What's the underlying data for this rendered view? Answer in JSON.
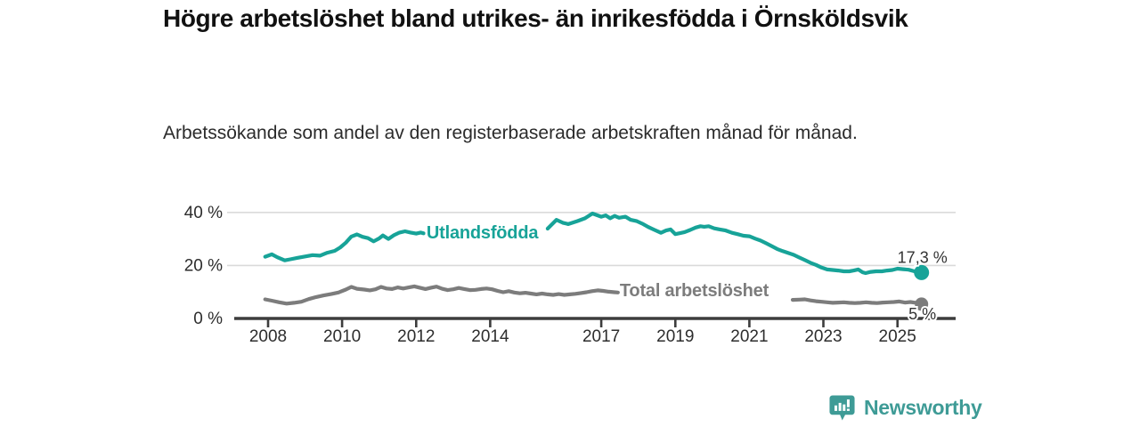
{
  "header": {
    "title": "Högre arbetslöshet bland utrikes- än inrikesfödda i Örnsköldsvik",
    "subtitle": "Arbetssökande som andel av den registerbaserade arbetskraften månad för månad."
  },
  "footer": {
    "brand": "Newsworthy",
    "brand_color": "#3E9B96",
    "logo_icon": "newsworthy-speech-bubble-bar-chart-icon"
  },
  "chart_data": {
    "type": "line",
    "title": "Högre arbetslöshet bland utrikes- än inrikesfödda i Örnsköldsvik",
    "subtitle": "Arbetssökande som andel av den registerbaserade arbetskraften månad för månad.",
    "grid": "horizontal",
    "xlim": [
      2006.9,
      2026.6
    ],
    "ylim": [
      0,
      42
    ],
    "x_axis": {
      "ticks": [
        {
          "value": 2008,
          "label": "2008"
        },
        {
          "value": 2010,
          "label": "2010"
        },
        {
          "value": 2012,
          "label": "2012"
        },
        {
          "value": 2014,
          "label": "2014"
        },
        {
          "value": 2017,
          "label": "2017"
        },
        {
          "value": 2019,
          "label": "2019"
        },
        {
          "value": 2021,
          "label": "2021"
        },
        {
          "value": 2023,
          "label": "2023"
        },
        {
          "value": 2025,
          "label": "2025"
        }
      ]
    },
    "y_axis": {
      "ticks": [
        {
          "value": 0,
          "label": "0 %"
        },
        {
          "value": 20,
          "label": "20 %"
        },
        {
          "value": 40,
          "label": "40 %"
        }
      ],
      "gridlines": [
        20,
        40
      ]
    },
    "colors": {
      "utlandsfodda": "#17A398",
      "total": "#7C7C7C",
      "axis": "#3D3D3D",
      "gridline": "#DADADA",
      "value_label": "#333333"
    },
    "series": [
      {
        "id": "utlandsfodda",
        "name": "Utlandsfödda",
        "color": "#17A398",
        "inline_label": {
          "text": "Utlandsfödda",
          "x": 2012.28,
          "y": 32.2
        },
        "end_label": {
          "text": "17,3 %",
          "position": "above"
        },
        "final_value": 17.3,
        "segments": [
          [
            [
              2007.92,
              23.3
            ],
            [
              2008.1,
              24.2
            ],
            [
              2008.25,
              23.1
            ],
            [
              2008.45,
              21.9
            ],
            [
              2008.6,
              22.3
            ],
            [
              2008.8,
              22.9
            ],
            [
              2009.0,
              23.4
            ],
            [
              2009.2,
              23.9
            ],
            [
              2009.4,
              23.7
            ],
            [
              2009.6,
              24.8
            ],
            [
              2009.8,
              25.5
            ],
            [
              2009.95,
              26.8
            ],
            [
              2010.1,
              28.6
            ],
            [
              2010.25,
              30.9
            ],
            [
              2010.4,
              31.7
            ],
            [
              2010.55,
              30.8
            ],
            [
              2010.7,
              30.3
            ],
            [
              2010.85,
              29.1
            ],
            [
              2011.0,
              30.2
            ],
            [
              2011.1,
              31.3
            ],
            [
              2011.25,
              30.0
            ],
            [
              2011.4,
              31.4
            ],
            [
              2011.55,
              32.4
            ],
            [
              2011.7,
              32.9
            ],
            [
              2011.85,
              32.4
            ],
            [
              2012.0,
              32.0
            ],
            [
              2012.12,
              32.4
            ],
            [
              2012.2,
              32.1
            ]
          ],
          [
            [
              2015.55,
              33.9
            ],
            [
              2015.79,
              37.2
            ],
            [
              2015.96,
              36.1
            ],
            [
              2016.11,
              35.6
            ],
            [
              2016.35,
              36.7
            ],
            [
              2016.56,
              37.8
            ],
            [
              2016.76,
              39.6
            ],
            [
              2017.0,
              38.4
            ],
            [
              2017.12,
              38.9
            ],
            [
              2017.24,
              37.8
            ],
            [
              2017.36,
              38.7
            ],
            [
              2017.48,
              38.0
            ],
            [
              2017.65,
              38.4
            ],
            [
              2017.79,
              37.2
            ],
            [
              2017.96,
              36.7
            ],
            [
              2018.13,
              35.6
            ],
            [
              2018.27,
              34.5
            ],
            [
              2018.44,
              33.4
            ],
            [
              2018.61,
              32.3
            ],
            [
              2018.75,
              33.2
            ],
            [
              2018.87,
              33.6
            ],
            [
              2019.0,
              31.8
            ],
            [
              2019.1,
              32.1
            ],
            [
              2019.25,
              32.6
            ],
            [
              2019.4,
              33.4
            ],
            [
              2019.55,
              34.3
            ],
            [
              2019.68,
              34.8
            ],
            [
              2019.78,
              34.6
            ],
            [
              2019.9,
              34.8
            ],
            [
              2020.05,
              34.0
            ],
            [
              2020.2,
              33.6
            ],
            [
              2020.36,
              33.2
            ],
            [
              2020.53,
              32.3
            ],
            [
              2020.68,
              31.8
            ],
            [
              2020.84,
              31.2
            ],
            [
              2021.0,
              31.0
            ],
            [
              2021.16,
              30.1
            ],
            [
              2021.3,
              29.4
            ],
            [
              2021.45,
              28.4
            ],
            [
              2021.6,
              27.3
            ],
            [
              2021.75,
              26.2
            ],
            [
              2021.9,
              25.4
            ],
            [
              2022.05,
              24.7
            ],
            [
              2022.2,
              24.0
            ],
            [
              2022.35,
              23.0
            ],
            [
              2022.5,
              22.0
            ],
            [
              2022.65,
              21.0
            ],
            [
              2022.8,
              20.2
            ],
            [
              2022.95,
              19.2
            ],
            [
              2023.1,
              18.5
            ],
            [
              2023.25,
              18.3
            ],
            [
              2023.4,
              18.1
            ],
            [
              2023.55,
              17.8
            ],
            [
              2023.7,
              17.8
            ],
            [
              2023.82,
              18.1
            ],
            [
              2023.94,
              18.5
            ],
            [
              2024.06,
              17.4
            ],
            [
              2024.14,
              17.1
            ],
            [
              2024.28,
              17.6
            ],
            [
              2024.42,
              17.8
            ],
            [
              2024.58,
              17.8
            ],
            [
              2024.72,
              18.1
            ],
            [
              2024.86,
              18.3
            ],
            [
              2025.0,
              18.8
            ],
            [
              2025.15,
              18.6
            ],
            [
              2025.3,
              18.4
            ],
            [
              2025.46,
              17.8
            ],
            [
              2025.65,
              17.3
            ]
          ]
        ]
      },
      {
        "id": "total-arbetsloshet",
        "name": "Total arbetslöshet",
        "color": "#7C7C7C",
        "inline_label": {
          "text": "Total arbetslöshet",
          "x": 2017.5,
          "y": 10.4
        },
        "end_label": {
          "text": "5 %",
          "position": "below"
        },
        "final_value": 5.4,
        "segments": [
          [
            [
              2007.92,
              7.2
            ],
            [
              2008.1,
              6.7
            ],
            [
              2008.3,
              6.1
            ],
            [
              2008.5,
              5.6
            ],
            [
              2008.7,
              5.9
            ],
            [
              2008.9,
              6.3
            ],
            [
              2009.1,
              7.3
            ],
            [
              2009.3,
              8.1
            ],
            [
              2009.5,
              8.7
            ],
            [
              2009.7,
              9.2
            ],
            [
              2009.9,
              9.8
            ],
            [
              2010.1,
              10.9
            ],
            [
              2010.25,
              11.9
            ],
            [
              2010.4,
              11.2
            ],
            [
              2010.6,
              10.9
            ],
            [
              2010.75,
              10.6
            ],
            [
              2010.9,
              11.0
            ],
            [
              2011.05,
              11.9
            ],
            [
              2011.2,
              11.3
            ],
            [
              2011.35,
              11.1
            ],
            [
              2011.5,
              11.7
            ],
            [
              2011.65,
              11.3
            ],
            [
              2011.8,
              11.7
            ],
            [
              2011.95,
              12.1
            ],
            [
              2012.1,
              11.6
            ],
            [
              2012.25,
              11.1
            ],
            [
              2012.4,
              11.6
            ],
            [
              2012.55,
              12.0
            ],
            [
              2012.7,
              11.2
            ],
            [
              2012.85,
              10.7
            ],
            [
              2013.0,
              11.0
            ],
            [
              2013.15,
              11.5
            ],
            [
              2013.3,
              11.1
            ],
            [
              2013.45,
              10.7
            ],
            [
              2013.6,
              10.8
            ],
            [
              2013.75,
              11.1
            ],
            [
              2013.9,
              11.3
            ],
            [
              2014.05,
              11.0
            ],
            [
              2014.2,
              10.4
            ],
            [
              2014.35,
              9.9
            ],
            [
              2014.5,
              10.3
            ],
            [
              2014.65,
              9.8
            ],
            [
              2014.8,
              9.5
            ],
            [
              2014.95,
              9.7
            ],
            [
              2015.1,
              9.4
            ],
            [
              2015.25,
              9.1
            ],
            [
              2015.4,
              9.4
            ],
            [
              2015.55,
              9.1
            ],
            [
              2015.7,
              8.9
            ],
            [
              2015.85,
              9.2
            ],
            [
              2016.0,
              8.9
            ],
            [
              2016.15,
              9.1
            ],
            [
              2016.3,
              9.3
            ],
            [
              2016.45,
              9.6
            ],
            [
              2016.6,
              9.9
            ],
            [
              2016.75,
              10.3
            ],
            [
              2016.9,
              10.6
            ],
            [
              2017.05,
              10.4
            ],
            [
              2017.2,
              10.1
            ],
            [
              2017.35,
              9.9
            ],
            [
              2017.45,
              9.8
            ]
          ],
          [
            [
              2022.17,
              7.0
            ],
            [
              2022.35,
              7.1
            ],
            [
              2022.5,
              7.2
            ],
            [
              2022.65,
              6.8
            ],
            [
              2022.8,
              6.5
            ],
            [
              2022.95,
              6.3
            ],
            [
              2023.1,
              6.1
            ],
            [
              2023.25,
              5.9
            ],
            [
              2023.4,
              6.0
            ],
            [
              2023.55,
              6.1
            ],
            [
              2023.7,
              5.9
            ],
            [
              2023.85,
              5.8
            ],
            [
              2024.0,
              5.9
            ],
            [
              2024.15,
              6.1
            ],
            [
              2024.3,
              5.9
            ],
            [
              2024.45,
              5.8
            ],
            [
              2024.6,
              6.0
            ],
            [
              2024.75,
              6.1
            ],
            [
              2024.9,
              6.2
            ],
            [
              2025.05,
              6.4
            ],
            [
              2025.2,
              6.0
            ],
            [
              2025.35,
              6.2
            ],
            [
              2025.5,
              5.9
            ],
            [
              2025.65,
              5.4
            ]
          ]
        ]
      }
    ]
  }
}
